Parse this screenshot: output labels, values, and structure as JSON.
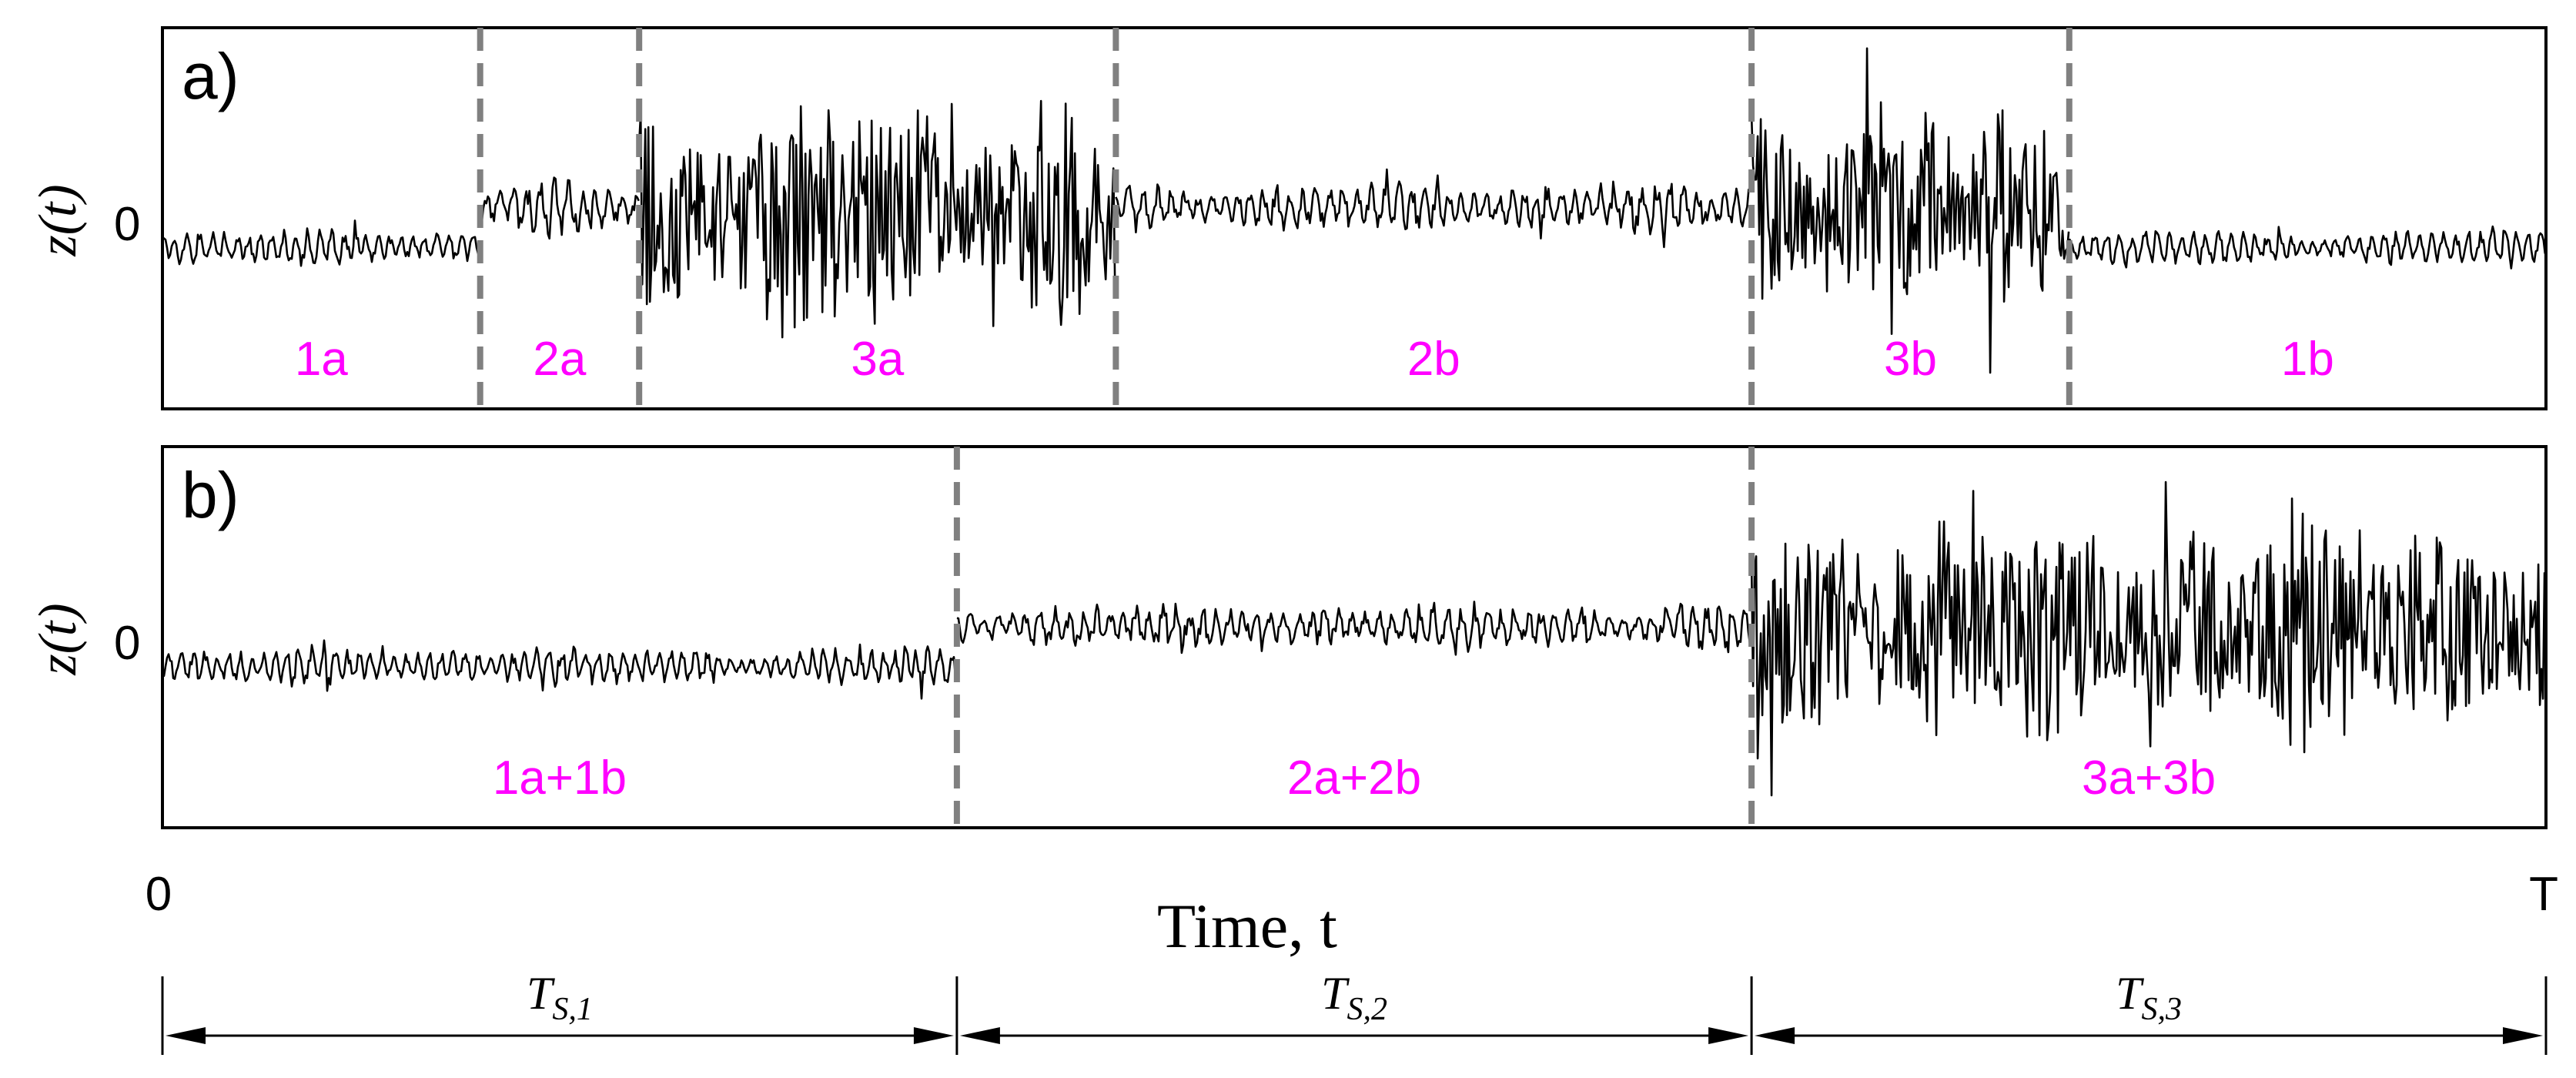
{
  "colors": {
    "signal": "#000000",
    "boundary": "#808080",
    "segment_label": "#ff00ff",
    "axes": "#000000"
  },
  "chart_data": [
    {
      "type": "line",
      "panel_label": "a)",
      "ylabel": "z(t)",
      "yticks": [
        "0"
      ],
      "x_range": [
        0,
        1
      ],
      "boundaries": [
        0.1333,
        0.2,
        0.4,
        0.6667,
        0.8
      ],
      "segments": [
        {
          "label": "1a",
          "start": 0.0,
          "end": 0.1333,
          "kind": 1
        },
        {
          "label": "2a",
          "start": 0.1333,
          "end": 0.2,
          "kind": 2
        },
        {
          "label": "3a",
          "start": 0.2,
          "end": 0.4,
          "kind": 3
        },
        {
          "label": "2b",
          "start": 0.4,
          "end": 0.6667,
          "kind": 2
        },
        {
          "label": "3b",
          "start": 0.6667,
          "end": 0.8,
          "kind": 3
        },
        {
          "label": "1b",
          "start": 0.8,
          "end": 1.0,
          "kind": 1
        }
      ]
    },
    {
      "type": "line",
      "panel_label": "b)",
      "ylabel": "z(t)",
      "yticks": [
        "0"
      ],
      "x_range": [
        0,
        1
      ],
      "boundaries": [
        0.3333,
        0.6667
      ],
      "segments": [
        {
          "label": "1a+1b",
          "start": 0.0,
          "end": 0.3333,
          "kind": 1
        },
        {
          "label": "2a+2b",
          "start": 0.3333,
          "end": 0.6667,
          "kind": 2
        },
        {
          "label": "3a+3b",
          "start": 0.6667,
          "end": 1.0,
          "kind": 3
        }
      ]
    }
  ],
  "x_axis": {
    "label": "Time, t",
    "start_label": "0",
    "end_label": "T"
  },
  "durations": [
    {
      "label": "T_{S,1}",
      "main": "T",
      "sub": "S,1",
      "start": 0.0,
      "end": 0.3333
    },
    {
      "label": "T_{S,2}",
      "main": "T",
      "sub": "S,2",
      "start": 0.3333,
      "end": 0.6667
    },
    {
      "label": "T_{S,3}",
      "main": "T",
      "sub": "S,3",
      "start": 0.6667,
      "end": 1.0
    }
  ]
}
